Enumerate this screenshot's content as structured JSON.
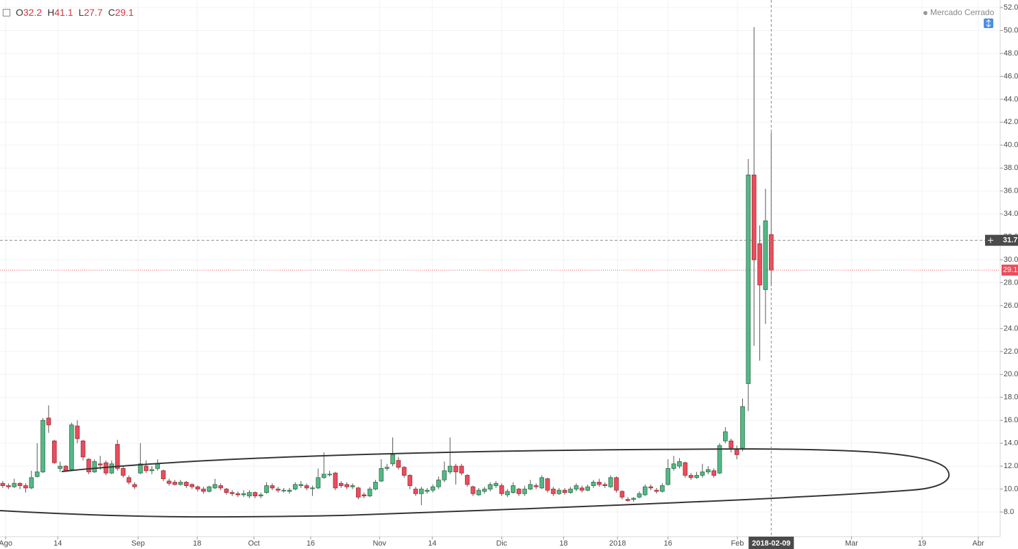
{
  "chart_data": {
    "type": "candlestick",
    "ohlc_letters": [
      "O",
      "H",
      "L",
      "C"
    ],
    "market_status": "Mercado Cerrado",
    "up_color": "#53b987",
    "down_color": "#eb4d5c",
    "up_border": "#2f6b45",
    "down_border": "#9e2a35",
    "wick_color": "#555555",
    "grid": true,
    "open": [
      10.5,
      10.3,
      10.2,
      10.5,
      10.3,
      10.1,
      11.1,
      11.5,
      16.2,
      14.2,
      11.8,
      12.0,
      11.7,
      15.5,
      14.2,
      12.6,
      11.5,
      12.2,
      12.3,
      11.4,
      13.9,
      11.8,
      11.0,
      10.4,
      11.4,
      12.0,
      11.6,
      11.8,
      11.6,
      10.7,
      10.6,
      10.4,
      10.6,
      10.4,
      10.2,
      10.0,
      9.8,
      10.1,
      10.3,
      10.0,
      9.7,
      9.6,
      9.5,
      9.4,
      9.7,
      9.4,
      9.7,
      10.3,
      10.0,
      9.9,
      9.8,
      10.0,
      10.3,
      10.3,
      10.1,
      10.1,
      11.0,
      11.3,
      11.4,
      10.5,
      10.4,
      10.2,
      10.1,
      9.5,
      9.4,
      10.0,
      10.7,
      11.8,
      12.2,
      12.5,
      11.9,
      11.2,
      10.0,
      9.6,
      9.8,
      9.9,
      10.2,
      10.8,
      11.5,
      12.0,
      12.0,
      11.2,
      10.2,
      9.5,
      9.8,
      10.0,
      10.3,
      10.3,
      9.5,
      9.7,
      10.0,
      9.6,
      10.0,
      10.3,
      10.1,
      10.9,
      10.0,
      9.6,
      9.9,
      9.7,
      10.0,
      10.1,
      9.9,
      10.3,
      10.6,
      10.4,
      10.2,
      11.0,
      9.8,
      9.1,
      9.1,
      9.3,
      9.5,
      10.2,
      9.9,
      9.8,
      10.4,
      11.8,
      12.0,
      12.3,
      11.2,
      11.0,
      11.2,
      11.5,
      11.6,
      11.4,
      14.2,
      14.2,
      13.4,
      13.6,
      19.2,
      37.4,
      31.4,
      27.4,
      32.2
    ],
    "high": [
      10.7,
      10.5,
      10.9,
      10.6,
      10.5,
      11.6,
      14.0,
      16.2,
      17.3,
      14.3,
      12.4,
      12.1,
      15.8,
      16.0,
      14.3,
      12.7,
      12.6,
      12.9,
      12.5,
      12.5,
      14.3,
      12.0,
      11.2,
      10.6,
      14.0,
      12.5,
      12.0,
      12.6,
      11.7,
      10.9,
      10.8,
      10.8,
      10.7,
      10.5,
      10.3,
      10.2,
      10.3,
      10.9,
      10.5,
      10.1,
      9.9,
      9.8,
      9.9,
      9.9,
      9.8,
      9.7,
      10.6,
      10.5,
      10.2,
      10.1,
      10.1,
      10.6,
      10.7,
      10.5,
      10.3,
      11.8,
      13.2,
      11.6,
      11.5,
      10.7,
      10.6,
      10.5,
      10.2,
      9.7,
      10.2,
      10.8,
      12.6,
      12.2,
      14.5,
      12.8,
      12.0,
      11.3,
      10.2,
      10.2,
      10.1,
      10.4,
      11.1,
      12.4,
      14.5,
      12.2,
      12.2,
      11.3,
      10.3,
      10.1,
      10.2,
      10.6,
      10.7,
      10.5,
      10.0,
      10.6,
      10.1,
      10.3,
      10.8,
      10.5,
      11.2,
      11.0,
      10.2,
      10.1,
      10.1,
      10.2,
      10.5,
      10.3,
      10.4,
      10.8,
      10.9,
      10.6,
      11.2,
      11.1,
      9.9,
      9.3,
      9.3,
      9.8,
      10.4,
      10.4,
      10.1,
      10.5,
      12.6,
      12.9,
      12.7,
      12.4,
      11.4,
      11.5,
      12.2,
      12.0,
      11.8,
      14.0,
      15.4,
      14.4,
      13.8,
      17.9,
      38.8,
      50.3,
      33.0,
      36.2,
      41.1
    ],
    "low": [
      10.1,
      10.0,
      10.1,
      10.0,
      9.7,
      10.0,
      11.0,
      11.4,
      14.9,
      12.2,
      11.5,
      11.5,
      11.6,
      14.0,
      12.5,
      11.3,
      11.4,
      11.7,
      11.2,
      11.3,
      11.6,
      11.0,
      10.4,
      10.0,
      11.3,
      11.4,
      11.3,
      11.6,
      10.7,
      10.3,
      10.3,
      10.3,
      10.1,
      10.0,
      9.8,
      9.6,
      9.7,
      10.0,
      9.9,
      9.5,
      9.4,
      9.3,
      9.3,
      9.2,
      9.2,
      9.2,
      9.6,
      9.9,
      9.7,
      9.7,
      9.6,
      9.9,
      10.1,
      9.9,
      9.4,
      10.0,
      10.9,
      11.1,
      9.9,
      10.1,
      10.0,
      10.0,
      9.1,
      9.2,
      9.3,
      9.9,
      10.6,
      11.6,
      12.0,
      11.7,
      11.0,
      10.0,
      9.4,
      8.6,
      9.6,
      9.7,
      10.0,
      10.6,
      11.3,
      10.4,
      11.2,
      10.2,
      9.4,
      9.4,
      9.6,
      9.8,
      10.1,
      9.4,
      9.3,
      9.6,
      9.4,
      9.4,
      9.9,
      10.0,
      10.0,
      9.7,
      9.4,
      9.5,
      9.5,
      9.6,
      9.8,
      9.7,
      9.8,
      10.1,
      10.2,
      10.1,
      10.1,
      9.7,
      9.1,
      8.9,
      8.9,
      9.2,
      9.4,
      9.9,
      9.6,
      9.7,
      10.3,
      11.6,
      11.8,
      11.0,
      10.8,
      10.9,
      11.0,
      11.3,
      11.0,
      11.3,
      14.0,
      13.2,
      12.6,
      13.3,
      16.8,
      22.5,
      21.2,
      24.4,
      27.7
    ],
    "close": [
      10.3,
      10.2,
      10.5,
      10.3,
      10.1,
      11.0,
      11.5,
      16.0,
      15.6,
      12.3,
      12.0,
      11.6,
      15.6,
      14.4,
      12.8,
      11.5,
      12.4,
      12.1,
      11.4,
      12.2,
      11.8,
      11.2,
      10.6,
      10.2,
      12.2,
      11.6,
      11.7,
      12.2,
      10.9,
      10.5,
      10.4,
      10.6,
      10.3,
      10.2,
      10.0,
      9.8,
      10.2,
      10.4,
      10.1,
      9.7,
      9.6,
      9.5,
      9.6,
      9.7,
      9.4,
      9.5,
      10.3,
      10.1,
      9.9,
      9.9,
      9.9,
      10.4,
      10.4,
      10.1,
      10.1,
      11.0,
      11.3,
      11.3,
      10.1,
      10.3,
      10.2,
      10.3,
      9.3,
      9.4,
      10.0,
      10.6,
      11.8,
      11.9,
      13.0,
      11.9,
      11.2,
      10.3,
      9.6,
      10.0,
      9.9,
      10.2,
      10.8,
      11.6,
      12.0,
      11.5,
      11.4,
      10.4,
      9.6,
      9.9,
      10.0,
      10.4,
      10.5,
      9.6,
      9.8,
      10.3,
      9.6,
      10.0,
      10.4,
      10.2,
      11.0,
      9.9,
      9.6,
      9.9,
      9.7,
      10.0,
      10.3,
      9.9,
      10.2,
      10.6,
      10.4,
      10.3,
      11.0,
      9.9,
      9.3,
      9.0,
      9.2,
      9.6,
      10.2,
      10.1,
      9.8,
      10.3,
      11.8,
      12.2,
      12.4,
      11.2,
      11.0,
      11.2,
      11.5,
      11.7,
      11.2,
      13.8,
      15.0,
      13.6,
      13.0,
      17.2,
      37.4,
      30.0,
      27.8,
      33.4,
      29.1
    ],
    "xlim": [
      -0.48,
      173.92
    ],
    "xticks": [
      {
        "value": 0.5,
        "label": "Ago"
      },
      {
        "value": 9.6,
        "label": "14"
      },
      {
        "value": 23.6,
        "label": "Sep"
      },
      {
        "value": 33.9,
        "label": "18"
      },
      {
        "value": 43.8,
        "label": "Oct"
      },
      {
        "value": 53.7,
        "label": "16"
      },
      {
        "value": 65.7,
        "label": "Nov"
      },
      {
        "value": 74.9,
        "label": "14"
      },
      {
        "value": 87,
        "label": "Dic"
      },
      {
        "value": 97.8,
        "label": "18"
      },
      {
        "value": 107.2,
        "label": "2018"
      },
      {
        "value": 116,
        "label": "16"
      },
      {
        "value": 128.1,
        "label": "Feb"
      },
      {
        "value": 148,
        "label": "Mar"
      },
      {
        "value": 160.3,
        "label": "19"
      },
      {
        "value": 170.1,
        "label": "Abr"
      }
    ],
    "ylim": [
      5.85,
      52.66
    ],
    "yticks": [
      {
        "value": 8,
        "label": "8.0"
      },
      {
        "value": 10,
        "label": "10.0"
      },
      {
        "value": 12,
        "label": "12.0"
      },
      {
        "value": 14,
        "label": "14.0"
      },
      {
        "value": 16,
        "label": "16.0"
      },
      {
        "value": 18,
        "label": "18.0"
      },
      {
        "value": 20,
        "label": "20.0"
      },
      {
        "value": 22,
        "label": "22.0"
      },
      {
        "value": 24,
        "label": "24.0"
      },
      {
        "value": 26,
        "label": "26.0"
      },
      {
        "value": 28,
        "label": "28.0"
      },
      {
        "value": 30,
        "label": "30.0"
      },
      {
        "value": 32,
        "label": "32.0"
      },
      {
        "value": 34,
        "label": "34.0"
      },
      {
        "value": 36,
        "label": "36.0"
      },
      {
        "value": 38,
        "label": "38.0"
      },
      {
        "value": 40,
        "label": "40.0"
      },
      {
        "value": 42,
        "label": "42.0"
      },
      {
        "value": 44,
        "label": "44.0"
      },
      {
        "value": 46,
        "label": "46.0"
      },
      {
        "value": 48,
        "label": "48.0"
      },
      {
        "value": 50,
        "label": "50.0"
      },
      {
        "value": 52,
        "label": "52.0"
      }
    ],
    "crosshair": {
      "x": 134,
      "x_label": "2018-02-09",
      "y": 31.7
    }
  }
}
